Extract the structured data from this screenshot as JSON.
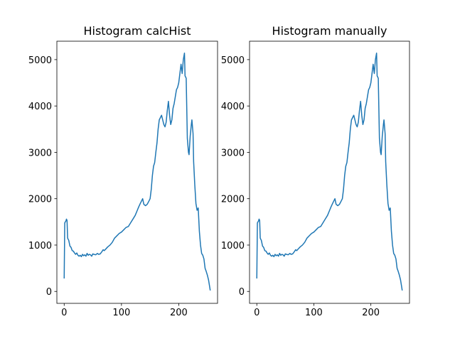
{
  "chart_data": [
    {
      "type": "line",
      "title": "Histogram calcHist",
      "color": "#1f77b4",
      "xlim": [
        -12.75,
        267.75
      ],
      "ylim": [
        -257,
        5397
      ],
      "xticks": [
        0,
        100,
        200
      ],
      "yticks": [
        0,
        1000,
        2000,
        3000,
        4000,
        5000
      ],
      "x": [
        0,
        1,
        2,
        3,
        4,
        5,
        6,
        8,
        10,
        12,
        14,
        16,
        18,
        20,
        22,
        24,
        26,
        28,
        30,
        32,
        34,
        36,
        38,
        40,
        42,
        44,
        46,
        48,
        50,
        52,
        55,
        58,
        60,
        63,
        66,
        68,
        70,
        73,
        76,
        80,
        84,
        88,
        92,
        96,
        100,
        104,
        108,
        112,
        116,
        120,
        124,
        128,
        130,
        133,
        135,
        137,
        139,
        142,
        145,
        148,
        150,
        152,
        154,
        156,
        158,
        160,
        162,
        164,
        166,
        168,
        170,
        172,
        174,
        176,
        178,
        180,
        182,
        184,
        186,
        188,
        190,
        192,
        194,
        196,
        198,
        200,
        202,
        204,
        206,
        208,
        210,
        211,
        213,
        215,
        217,
        218,
        220,
        222,
        223,
        225,
        226,
        228,
        230,
        232,
        234,
        236,
        238,
        240,
        242,
        244,
        246,
        248,
        250,
        252,
        254,
        255
      ],
      "values": [
        280,
        1480,
        1500,
        1520,
        1560,
        1530,
        1150,
        1100,
        980,
        950,
        880,
        870,
        830,
        800,
        830,
        780,
        760,
        780,
        750,
        800,
        770,
        790,
        760,
        820,
        780,
        800,
        790,
        760,
        810,
        800,
        790,
        820,
        800,
        810,
        860,
        900,
        880,
        920,
        960,
        1000,
        1060,
        1150,
        1200,
        1250,
        1280,
        1330,
        1380,
        1400,
        1480,
        1560,
        1640,
        1760,
        1820,
        1900,
        1950,
        2000,
        1880,
        1850,
        1880,
        1950,
        2000,
        2200,
        2500,
        2700,
        2780,
        3000,
        3200,
        3500,
        3700,
        3750,
        3800,
        3700,
        3600,
        3550,
        3650,
        3900,
        4100,
        3800,
        3600,
        3700,
        3950,
        4050,
        4200,
        4350,
        4400,
        4500,
        4700,
        4900,
        4700,
        5000,
        5140,
        4650,
        4600,
        3300,
        3000,
        2950,
        3350,
        3600,
        3700,
        3400,
        2800,
        2300,
        1900,
        1750,
        1800,
        1300,
        1000,
        820,
        780,
        700,
        500,
        430,
        350,
        250,
        100,
        20
      ]
    },
    {
      "type": "line",
      "title": "Histogram manually",
      "color": "#1f77b4",
      "xlim": [
        -12.75,
        267.75
      ],
      "ylim": [
        -257,
        5397
      ],
      "xticks": [
        0,
        100,
        200
      ],
      "yticks": [
        0,
        1000,
        2000,
        3000,
        4000,
        5000
      ],
      "x": [
        0,
        1,
        2,
        3,
        4,
        5,
        6,
        8,
        10,
        12,
        14,
        16,
        18,
        20,
        22,
        24,
        26,
        28,
        30,
        32,
        34,
        36,
        38,
        40,
        42,
        44,
        46,
        48,
        50,
        52,
        55,
        58,
        60,
        63,
        66,
        68,
        70,
        73,
        76,
        80,
        84,
        88,
        92,
        96,
        100,
        104,
        108,
        112,
        116,
        120,
        124,
        128,
        130,
        133,
        135,
        137,
        139,
        142,
        145,
        148,
        150,
        152,
        154,
        156,
        158,
        160,
        162,
        164,
        166,
        168,
        170,
        172,
        174,
        176,
        178,
        180,
        182,
        184,
        186,
        188,
        190,
        192,
        194,
        196,
        198,
        200,
        202,
        204,
        206,
        208,
        210,
        211,
        213,
        215,
        217,
        218,
        220,
        222,
        223,
        225,
        226,
        228,
        230,
        232,
        234,
        236,
        238,
        240,
        242,
        244,
        246,
        248,
        250,
        252,
        254,
        255
      ],
      "values": [
        280,
        1480,
        1500,
        1520,
        1560,
        1530,
        1150,
        1100,
        980,
        950,
        880,
        870,
        830,
        800,
        830,
        780,
        760,
        780,
        750,
        800,
        770,
        790,
        760,
        820,
        780,
        800,
        790,
        760,
        810,
        800,
        790,
        820,
        800,
        810,
        860,
        900,
        880,
        920,
        960,
        1000,
        1060,
        1150,
        1200,
        1250,
        1280,
        1330,
        1380,
        1400,
        1480,
        1560,
        1640,
        1760,
        1820,
        1900,
        1950,
        2000,
        1880,
        1850,
        1880,
        1950,
        2000,
        2200,
        2500,
        2700,
        2780,
        3000,
        3200,
        3500,
        3700,
        3750,
        3800,
        3700,
        3600,
        3550,
        3650,
        3900,
        4100,
        3800,
        3600,
        3700,
        3950,
        4050,
        4200,
        4350,
        4400,
        4500,
        4700,
        4900,
        4700,
        5000,
        5140,
        4650,
        4600,
        3300,
        3000,
        2950,
        3350,
        3600,
        3700,
        3400,
        2800,
        2300,
        1900,
        1750,
        1800,
        1300,
        1000,
        820,
        780,
        700,
        500,
        430,
        350,
        250,
        100,
        20
      ]
    }
  ]
}
